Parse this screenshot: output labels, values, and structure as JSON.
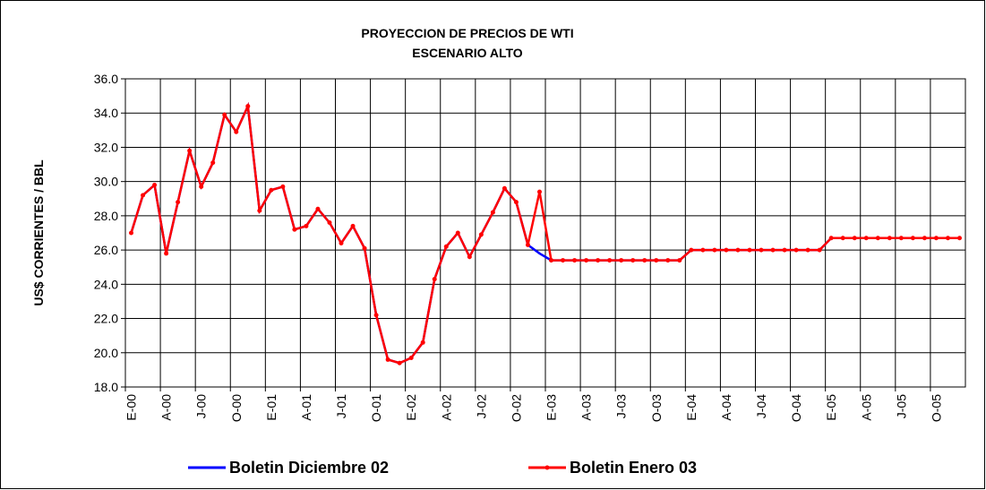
{
  "chart_data": {
    "type": "line",
    "title": "PROYECCION DE PRECIOS DE WTI",
    "subtitle": "ESCENARIO ALTO",
    "y_label": "US$ CORRIENTES / BBL",
    "categories": [
      "E-00",
      null,
      null,
      "A-00",
      null,
      null,
      "J-00",
      null,
      null,
      "O-00",
      null,
      null,
      "E-01",
      null,
      null,
      "A-01",
      null,
      null,
      "J-01",
      null,
      null,
      "O-01",
      null,
      null,
      "E-02",
      null,
      null,
      "A-02",
      null,
      null,
      "J-02",
      null,
      null,
      "O-02",
      null,
      null,
      "E-03",
      null,
      null,
      "A-03",
      null,
      null,
      "J-03",
      null,
      null,
      "O-03",
      null,
      null,
      "E-04",
      null,
      null,
      "A-04",
      null,
      null,
      "J-04",
      null,
      null,
      "O-04",
      null,
      null,
      "E-05",
      null,
      null,
      "A-05",
      null,
      null,
      "J-05",
      null,
      null,
      "O-05",
      null,
      null
    ],
    "series": [
      {
        "name": "Boletin Diciembre 02",
        "color": "#0000ff",
        "markers": false,
        "values": [
          27.0,
          29.2,
          29.8,
          25.8,
          28.8,
          31.8,
          29.7,
          31.1,
          33.9,
          32.9,
          34.4,
          28.3,
          29.5,
          29.7,
          27.2,
          27.4,
          28.4,
          27.6,
          26.4,
          27.4,
          26.1,
          22.2,
          19.6,
          19.4,
          19.7,
          20.6,
          24.3,
          26.2,
          27.0,
          25.6,
          26.9,
          28.2,
          29.6,
          28.8,
          26.3,
          25.8,
          25.4,
          25.4,
          25.4,
          25.4,
          25.4,
          25.4,
          25.4,
          25.4,
          25.4,
          25.4,
          25.4,
          25.4,
          26.0,
          26.0,
          26.0,
          26.0,
          26.0,
          26.0,
          26.0,
          26.0,
          26.0,
          26.0,
          26.0,
          26.0,
          26.7,
          26.7,
          26.7,
          26.7,
          26.7,
          26.7,
          26.7,
          26.7,
          26.7,
          26.7,
          26.7,
          26.7
        ]
      },
      {
        "name": "Boletin Enero 03",
        "color": "#ff0000",
        "markers": true,
        "values": [
          27.0,
          29.2,
          29.8,
          25.8,
          28.8,
          31.8,
          29.7,
          31.1,
          33.9,
          32.9,
          34.4,
          28.3,
          29.5,
          29.7,
          27.2,
          27.4,
          28.4,
          27.6,
          26.4,
          27.4,
          26.1,
          22.2,
          19.6,
          19.4,
          19.7,
          20.6,
          24.3,
          26.2,
          27.0,
          25.6,
          26.9,
          28.2,
          29.6,
          28.8,
          26.3,
          29.4,
          25.4,
          25.4,
          25.4,
          25.4,
          25.4,
          25.4,
          25.4,
          25.4,
          25.4,
          25.4,
          25.4,
          25.4,
          26.0,
          26.0,
          26.0,
          26.0,
          26.0,
          26.0,
          26.0,
          26.0,
          26.0,
          26.0,
          26.0,
          26.0,
          26.7,
          26.7,
          26.7,
          26.7,
          26.7,
          26.7,
          26.7,
          26.7,
          26.7,
          26.7,
          26.7,
          26.7
        ]
      }
    ],
    "ylim": [
      18,
      36
    ],
    "yticks": [
      {
        "value": 18,
        "label": "18.0"
      },
      {
        "value": 20,
        "label": "20.0"
      },
      {
        "value": 22,
        "label": "22.0"
      },
      {
        "value": 24,
        "label": "24.0"
      },
      {
        "value": 26,
        "label": "26.0"
      },
      {
        "value": 28,
        "label": "28.0"
      },
      {
        "value": 30,
        "label": "30.0"
      },
      {
        "value": 32,
        "label": "32.0"
      },
      {
        "value": 34,
        "label": "34.0"
      },
      {
        "value": 36,
        "label": "36.0"
      }
    ],
    "grid": true,
    "legend": "bottom"
  }
}
